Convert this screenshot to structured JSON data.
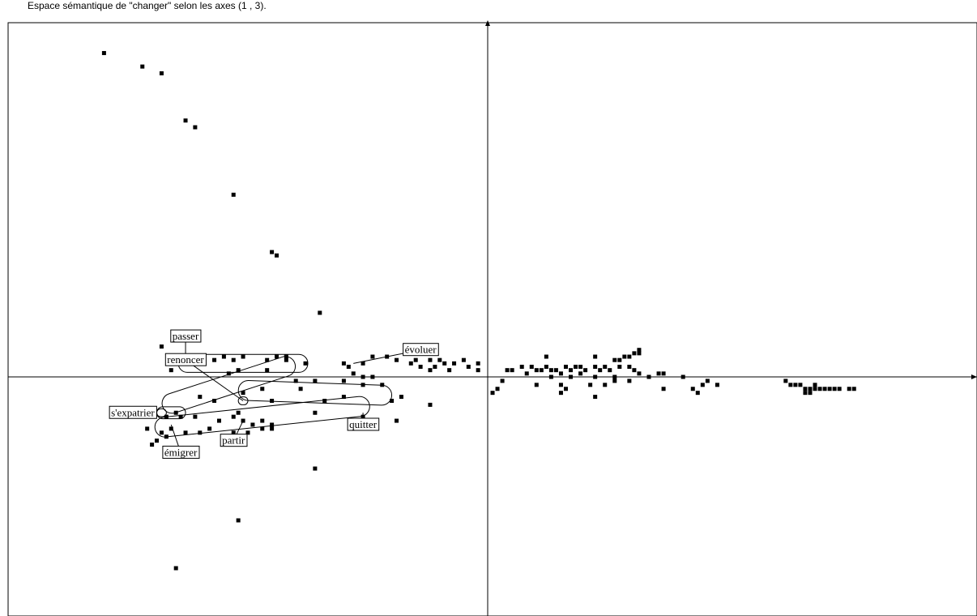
{
  "chart_data": {
    "type": "scatter",
    "title": "Espace sémantique de \"changer\" selon les axes (1 , 3).",
    "xlabel": "",
    "ylabel": "",
    "axes": "1 , 3",
    "grid": false,
    "points": [
      [
        -0.8,
        0.96
      ],
      [
        -0.72,
        0.92
      ],
      [
        -0.68,
        0.9
      ],
      [
        -0.63,
        0.76
      ],
      [
        -0.61,
        0.74
      ],
      [
        -0.53,
        0.54
      ],
      [
        -0.45,
        0.37
      ],
      [
        -0.44,
        0.36
      ],
      [
        -0.35,
        0.19
      ],
      [
        -0.68,
        0.09
      ],
      [
        -0.6,
        0.05
      ],
      [
        -0.57,
        0.05
      ],
      [
        -0.55,
        0.06
      ],
      [
        -0.53,
        0.05
      ],
      [
        -0.51,
        0.06
      ],
      [
        -0.46,
        0.05
      ],
      [
        -0.44,
        0.06
      ],
      [
        -0.42,
        0.06
      ],
      [
        -0.42,
        0.05
      ],
      [
        -0.38,
        0.04
      ],
      [
        -0.3,
        0.04
      ],
      [
        -0.29,
        0.03
      ],
      [
        -0.26,
        0.04
      ],
      [
        -0.24,
        0.06
      ],
      [
        -0.21,
        0.06
      ],
      [
        -0.19,
        0.05
      ],
      [
        -0.16,
        0.04
      ],
      [
        -0.15,
        0.05
      ],
      [
        -0.14,
        0.03
      ],
      [
        -0.12,
        0.05
      ],
      [
        -0.11,
        0.03
      ],
      [
        -0.1,
        0.05
      ],
      [
        -0.09,
        0.04
      ],
      [
        -0.07,
        0.04
      ],
      [
        -0.05,
        0.05
      ],
      [
        -0.04,
        0.03
      ],
      [
        -0.08,
        0.02
      ],
      [
        -0.12,
        0.02
      ],
      [
        -0.02,
        0.04
      ],
      [
        -0.66,
        0.02
      ],
      [
        -0.54,
        0.01
      ],
      [
        -0.52,
        0.02
      ],
      [
        -0.46,
        0.02
      ],
      [
        -0.4,
        -0.01
      ],
      [
        -0.36,
        -0.01
      ],
      [
        -0.3,
        -0.01
      ],
      [
        -0.28,
        0.01
      ],
      [
        -0.26,
        0.0
      ],
      [
        -0.24,
        0.0
      ],
      [
        -0.26,
        -0.02
      ],
      [
        -0.22,
        -0.02
      ],
      [
        -0.18,
        -0.05
      ],
      [
        -0.6,
        -0.05
      ],
      [
        -0.57,
        -0.06
      ],
      [
        -0.51,
        -0.04
      ],
      [
        -0.47,
        -0.03
      ],
      [
        -0.45,
        -0.06
      ],
      [
        -0.39,
        -0.03
      ],
      [
        -0.34,
        -0.06
      ],
      [
        -0.3,
        -0.05
      ],
      [
        -0.2,
        -0.06
      ],
      [
        -0.12,
        -0.07
      ],
      [
        -0.65,
        -0.09
      ],
      [
        -0.61,
        -0.1
      ],
      [
        -0.56,
        -0.11
      ],
      [
        -0.52,
        -0.09
      ],
      [
        -0.51,
        -0.11
      ],
      [
        -0.49,
        -0.12
      ],
      [
        -0.47,
        -0.11
      ],
      [
        -0.45,
        -0.12
      ],
      [
        -0.45,
        -0.13
      ],
      [
        -0.47,
        -0.13
      ],
      [
        -0.5,
        -0.14
      ],
      [
        -0.53,
        -0.14
      ],
      [
        -0.55,
        -0.15
      ],
      [
        -0.58,
        -0.13
      ],
      [
        -0.63,
        -0.14
      ],
      [
        -0.66,
        -0.13
      ],
      [
        -0.67,
        -0.15
      ],
      [
        -0.68,
        -0.14
      ],
      [
        -0.69,
        -0.16
      ],
      [
        -0.7,
        -0.17
      ],
      [
        -0.6,
        -0.14
      ],
      [
        -0.53,
        -0.1
      ],
      [
        -0.36,
        -0.09
      ],
      [
        -0.26,
        -0.1
      ],
      [
        -0.19,
        -0.11
      ],
      [
        -0.71,
        -0.13
      ],
      [
        -0.67,
        -0.1
      ],
      [
        -0.64,
        -0.1
      ],
      [
        -0.36,
        -0.23
      ],
      [
        -0.52,
        -0.36
      ],
      [
        -0.65,
        -0.48
      ],
      [
        -0.02,
        0.02
      ],
      [
        0.04,
        0.02
      ],
      [
        0.05,
        0.02
      ],
      [
        0.07,
        0.03
      ],
      [
        0.08,
        0.01
      ],
      [
        0.09,
        0.03
      ],
      [
        0.1,
        0.02
      ],
      [
        0.11,
        0.02
      ],
      [
        0.12,
        0.03
      ],
      [
        0.13,
        0.02
      ],
      [
        0.14,
        0.02
      ],
      [
        0.15,
        0.01
      ],
      [
        0.16,
        0.03
      ],
      [
        0.17,
        0.02
      ],
      [
        0.18,
        0.03
      ],
      [
        0.19,
        0.03
      ],
      [
        0.2,
        0.02
      ],
      [
        0.22,
        0.03
      ],
      [
        0.23,
        0.02
      ],
      [
        0.24,
        0.03
      ],
      [
        0.25,
        0.02
      ],
      [
        0.27,
        0.03
      ],
      [
        0.29,
        0.03
      ],
      [
        0.3,
        0.02
      ],
      [
        0.31,
        0.01
      ],
      [
        0.13,
        0.0
      ],
      [
        0.17,
        0.0
      ],
      [
        0.19,
        0.01
      ],
      [
        0.22,
        0.0
      ],
      [
        0.26,
        0.0
      ],
      [
        0.33,
        0.0
      ],
      [
        0.35,
        0.01
      ],
      [
        0.36,
        0.01
      ],
      [
        0.4,
        0.0
      ],
      [
        0.12,
        0.06
      ],
      [
        0.22,
        0.06
      ],
      [
        0.26,
        0.05
      ],
      [
        0.28,
        0.06
      ],
      [
        0.27,
        0.05
      ],
      [
        0.29,
        0.06
      ],
      [
        0.3,
        0.07
      ],
      [
        0.31,
        0.07
      ],
      [
        0.31,
        0.08
      ],
      [
        0.03,
        -0.01
      ],
      [
        0.02,
        -0.03
      ],
      [
        0.01,
        -0.04
      ],
      [
        0.1,
        -0.02
      ],
      [
        0.15,
        -0.02
      ],
      [
        0.16,
        -0.03
      ],
      [
        0.15,
        -0.04
      ],
      [
        0.21,
        -0.02
      ],
      [
        0.24,
        -0.02
      ],
      [
        0.22,
        -0.05
      ],
      [
        0.26,
        -0.01
      ],
      [
        0.29,
        -0.01
      ],
      [
        0.36,
        -0.03
      ],
      [
        0.42,
        -0.03
      ],
      [
        0.45,
        -0.01
      ],
      [
        0.44,
        -0.02
      ],
      [
        0.43,
        -0.04
      ],
      [
        0.47,
        -0.02
      ],
      [
        0.61,
        -0.01
      ],
      [
        0.62,
        -0.02
      ],
      [
        0.63,
        -0.02
      ],
      [
        0.64,
        -0.02
      ],
      [
        0.65,
        -0.03
      ],
      [
        0.66,
        -0.03
      ],
      [
        0.67,
        -0.03
      ],
      [
        0.67,
        -0.02
      ],
      [
        0.68,
        -0.03
      ],
      [
        0.69,
        -0.03
      ],
      [
        0.7,
        -0.03
      ],
      [
        0.71,
        -0.03
      ],
      [
        0.72,
        -0.03
      ],
      [
        0.74,
        -0.03
      ],
      [
        0.75,
        -0.03
      ],
      [
        0.65,
        -0.04
      ],
      [
        0.66,
        -0.04
      ]
    ],
    "labels": [
      {
        "text": "passer",
        "x": -0.63,
        "y": 0.05,
        "lx": -0.63,
        "ly": 0.12
      },
      {
        "text": "renoncer",
        "x": -0.51,
        "y": -0.06,
        "lx": -0.63,
        "ly": 0.05
      },
      {
        "text": "évoluer",
        "x": -0.28,
        "y": 0.04,
        "lx": -0.14,
        "ly": 0.08
      },
      {
        "text": "s'expatrier",
        "x": -0.68,
        "y": -0.1,
        "lx": -0.74,
        "ly": -0.09
      },
      {
        "text": "quitter",
        "x": -0.26,
        "y": -0.09,
        "lx": -0.26,
        "ly": -0.12
      },
      {
        "text": "partir",
        "x": -0.51,
        "y": -0.11,
        "lx": -0.53,
        "ly": -0.16
      },
      {
        "text": "émigrer",
        "x": -0.66,
        "y": -0.12,
        "lx": -0.64,
        "ly": -0.19
      }
    ],
    "regions": [
      {
        "name": "passer",
        "x": -0.51,
        "y": 0.04,
        "w": 0.27,
        "h": 0.045
      },
      {
        "name": "renoncer",
        "x": -0.54,
        "y": -0.02,
        "w": 0.29,
        "h": 0.05,
        "rot": -18
      },
      {
        "name": "évoluer-quitter",
        "x": -0.36,
        "y": -0.04,
        "w": 0.32,
        "h": 0.05,
        "rot": 2
      },
      {
        "name": "partir-band",
        "x": -0.47,
        "y": -0.1,
        "w": 0.45,
        "h": 0.05,
        "rot": -6
      },
      {
        "name": "s'expatrier",
        "x": -0.66,
        "y": -0.09,
        "w": 0.06,
        "h": 0.03
      },
      {
        "name": "émigrer",
        "x": -0.68,
        "y": -0.09,
        "w": 0.02,
        "h": 0.02
      },
      {
        "name": "partir",
        "x": -0.51,
        "y": -0.06,
        "w": 0.02,
        "h": 0.02
      }
    ],
    "xlim": [
      -1.0,
      1.0
    ],
    "ylim": [
      -0.6,
      1.05
    ]
  }
}
